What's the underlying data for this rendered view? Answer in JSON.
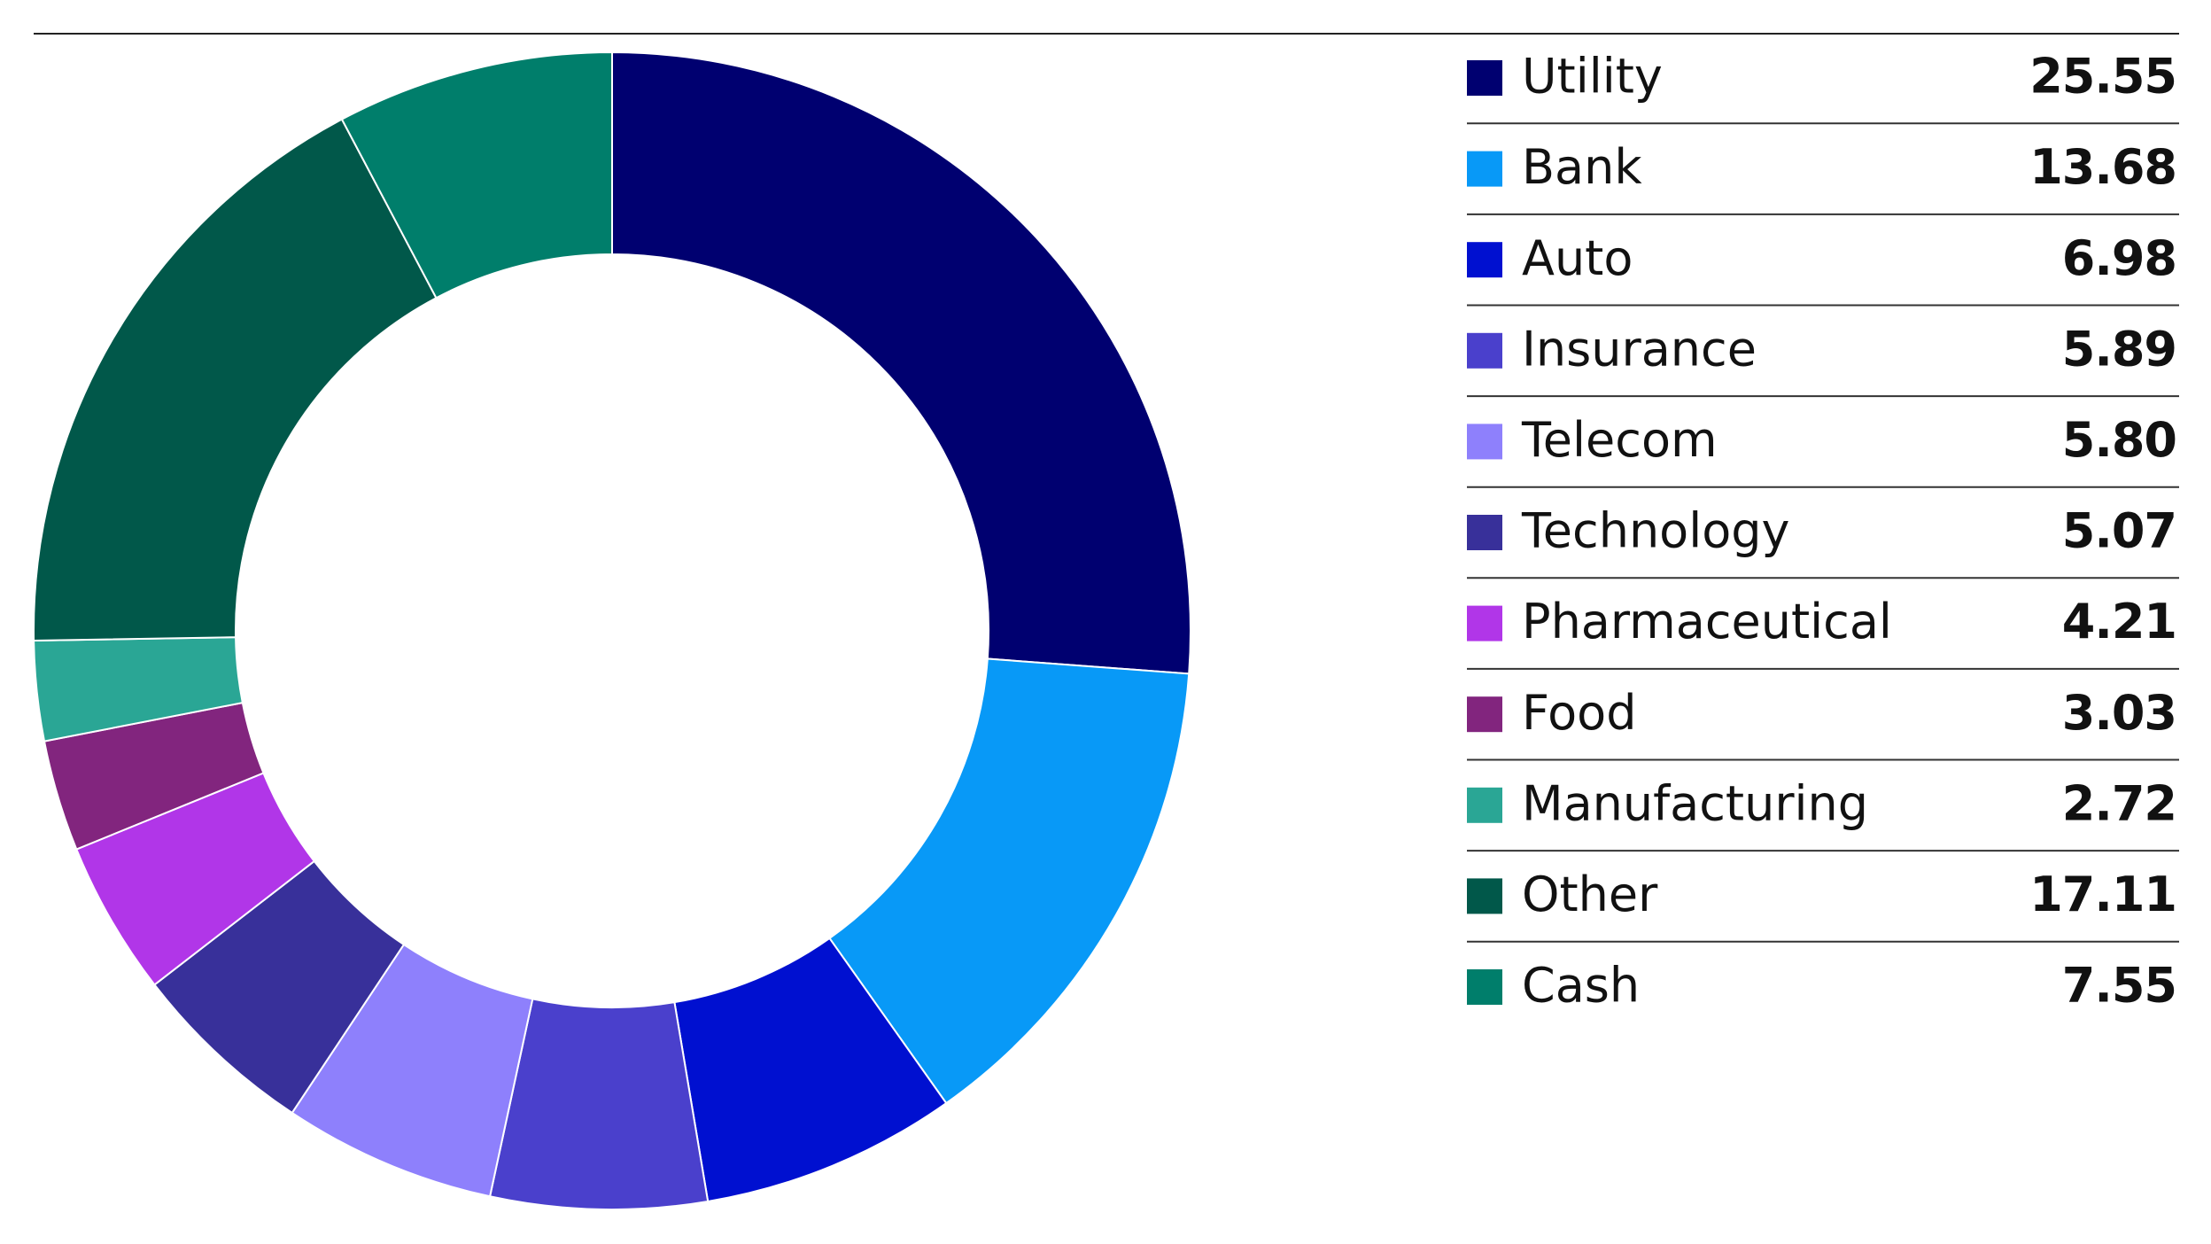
{
  "chart_data": {
    "type": "donut",
    "categories": [
      "Utility",
      "Bank",
      "Auto",
      "Insurance",
      "Telecom",
      "Technology",
      "Pharmaceutical",
      "Food",
      "Manufacturing",
      "Other",
      "Cash"
    ],
    "values": [
      25.55,
      13.68,
      6.98,
      5.89,
      5.8,
      5.07,
      4.21,
      3.03,
      2.72,
      17.11,
      7.55
    ],
    "value_labels": [
      "25.55",
      "13.68",
      "6.98",
      "5.89",
      "5.80",
      "5.07",
      "4.21",
      "3.03",
      "2.72",
      "17.11",
      "7.55"
    ],
    "colors": [
      "#000070",
      "#0899f7",
      "#0010d0",
      "#4a40cc",
      "#8e80fc",
      "#38309a",
      "#b136e8",
      "#82257e",
      "#2aa695",
      "#01584a",
      "#007e6b"
    ]
  }
}
